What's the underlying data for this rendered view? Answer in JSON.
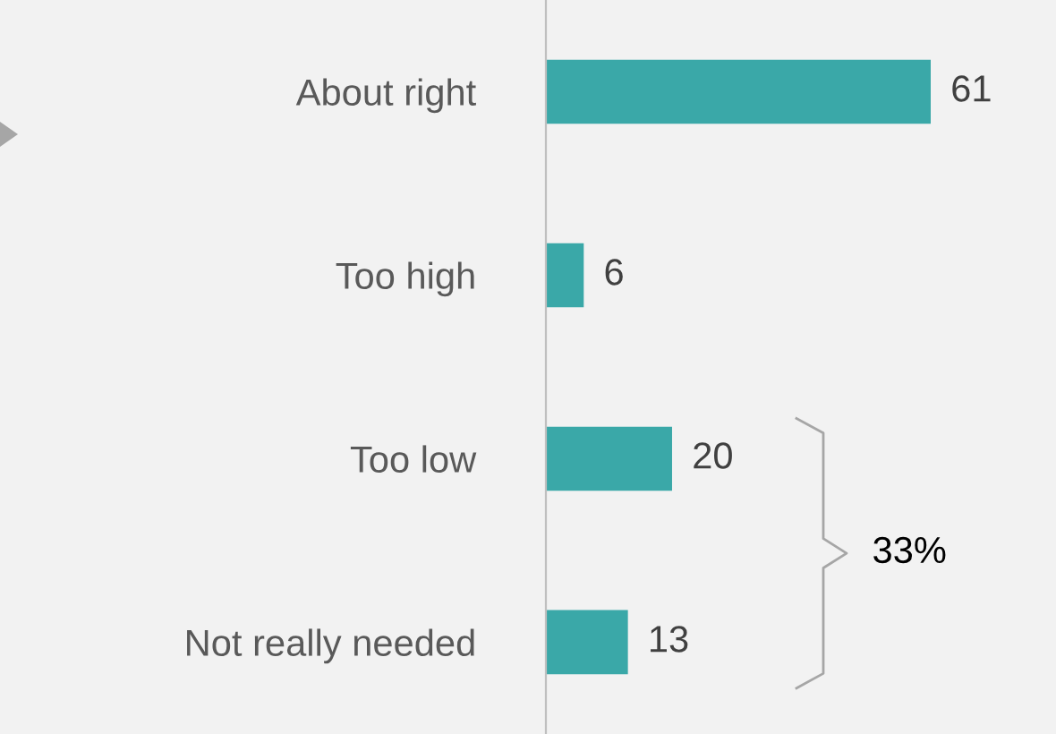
{
  "chart_data": {
    "type": "bar",
    "orientation": "horizontal",
    "categories": [
      "About right",
      "Too high",
      "Too low",
      "Not really needed"
    ],
    "values": [
      61,
      6,
      20,
      13
    ],
    "color": "#3aa8a8",
    "data_labels": true,
    "grid": false,
    "annotations": [
      "33%"
    ]
  }
}
